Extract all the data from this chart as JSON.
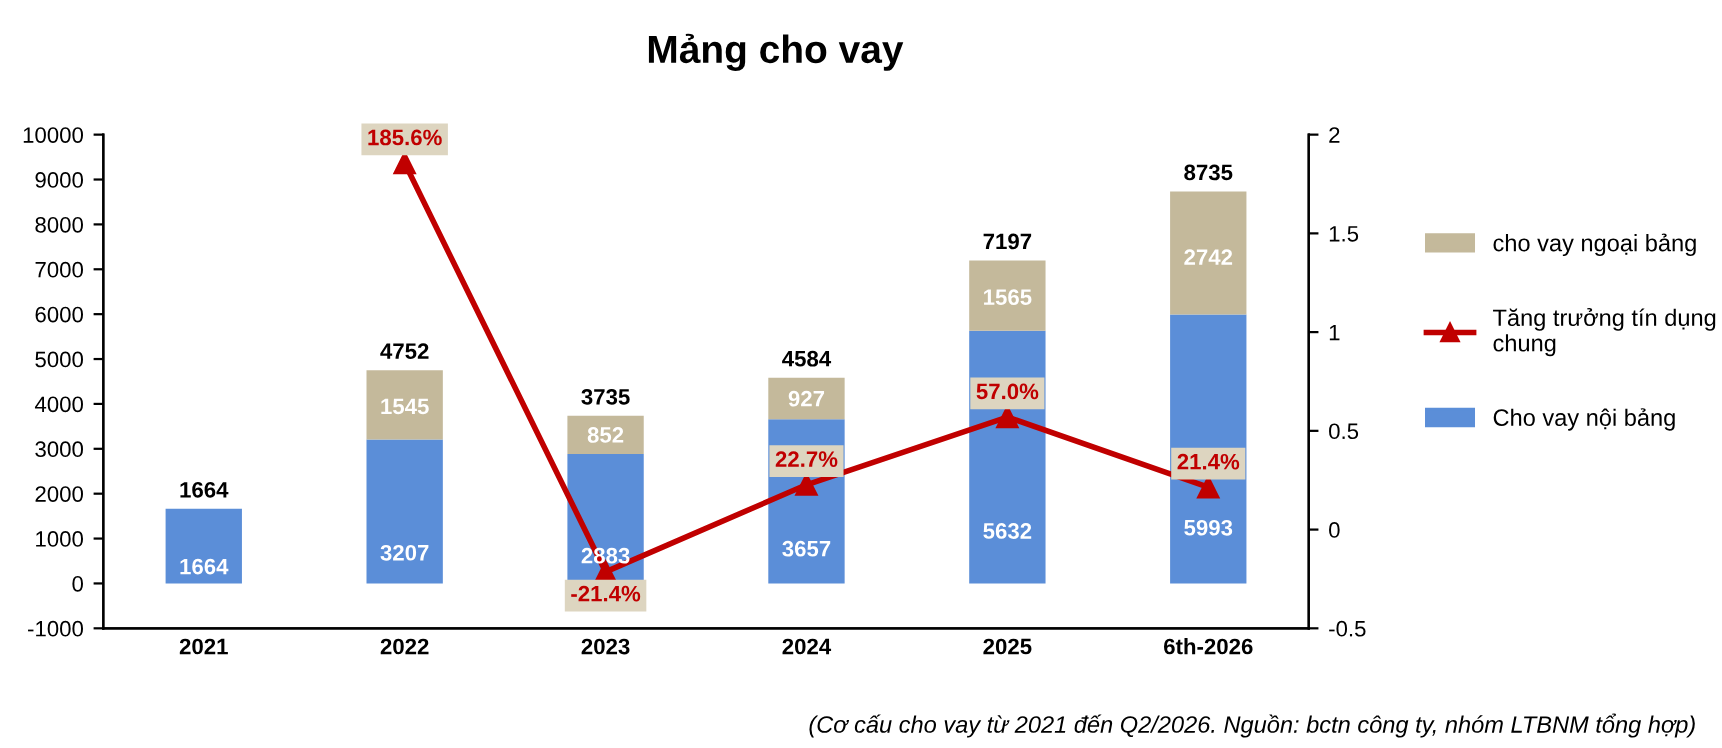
{
  "chart_data": {
    "type": "bar",
    "title": "Mảng cho vay",
    "stacked": true,
    "categories": [
      "2021",
      "2022",
      "2023",
      "2024",
      "2025",
      "6th-2026"
    ],
    "series": [
      {
        "name": "Cho vay nội bảng",
        "color": "#5b8ed8",
        "values": [
          1664,
          3207,
          2883,
          3657,
          5632,
          5993
        ],
        "value_labels": [
          "1664",
          "3207",
          "2883",
          "3657",
          "5632",
          "5993"
        ]
      },
      {
        "name": "cho vay ngoại bảng",
        "color": "#c4b99b",
        "values": [
          null,
          1545,
          852,
          927,
          1565,
          2742
        ],
        "value_labels": [
          null,
          "1545",
          "852",
          "927",
          "1565",
          "2742"
        ]
      },
      {
        "name": "Tăng trưởng tín dụng chung",
        "type": "line",
        "axis": "y2",
        "color": "#c00000",
        "marker": "triangle",
        "values": [
          null,
          1.856,
          -0.214,
          0.227,
          0.57,
          0.214
        ],
        "value_labels": [
          null,
          "185.6%",
          "-21.4%",
          "22.7%",
          "57.0%",
          "21.4%"
        ]
      }
    ],
    "totals": [
      "1664",
      "4752",
      "3735",
      "4584",
      "7197",
      "8735"
    ],
    "ylim": [
      -1000,
      10000
    ],
    "yticks": [
      -1000,
      0,
      1000,
      2000,
      3000,
      4000,
      5000,
      6000,
      7000,
      8000,
      9000,
      10000
    ],
    "y2lim": [
      -0.5,
      2
    ],
    "y2ticks": [
      -0.5,
      0,
      0.5,
      1,
      1.5,
      2
    ],
    "legend": "right",
    "grid": false,
    "annotations": [
      "(Cơ cấu cho vay từ 2021 đến Q2/2026. Nguồn: bctn công ty, nhóm LTBNM tổng hợp)"
    ]
  }
}
